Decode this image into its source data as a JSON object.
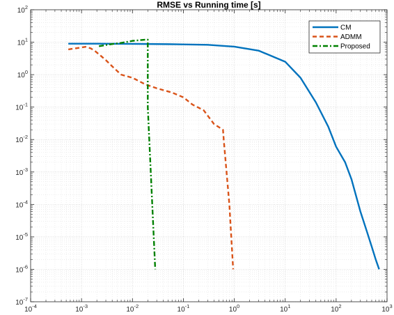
{
  "chart_data": {
    "type": "line",
    "title": "RMSE vs Running time [s]",
    "xlabel": "",
    "ylabel": "",
    "xscale": "log",
    "yscale": "log",
    "xlim": [
      0.0001,
      1000
    ],
    "ylim": [
      1e-07,
      100
    ],
    "x_tick_labels": [
      {
        "base": "10",
        "exp": "-4"
      },
      {
        "base": "10",
        "exp": "-3"
      },
      {
        "base": "10",
        "exp": "-2"
      },
      {
        "base": "10",
        "exp": "-1"
      },
      {
        "base": "10",
        "exp": "0"
      },
      {
        "base": "10",
        "exp": "1"
      },
      {
        "base": "10",
        "exp": "2"
      },
      {
        "base": "10",
        "exp": "3"
      }
    ],
    "y_tick_labels": [
      {
        "base": "10",
        "exp": "-7"
      },
      {
        "base": "10",
        "exp": "-6"
      },
      {
        "base": "10",
        "exp": "-5"
      },
      {
        "base": "10",
        "exp": "-4"
      },
      {
        "base": "10",
        "exp": "-3"
      },
      {
        "base": "10",
        "exp": "-2"
      },
      {
        "base": "10",
        "exp": "-1"
      },
      {
        "base": "10",
        "exp": "0"
      },
      {
        "base": "10",
        "exp": "1"
      },
      {
        "base": "10",
        "exp": "2"
      }
    ],
    "grid": true,
    "minor_grid": true,
    "legend_position": "top-right",
    "series": [
      {
        "name": "CM",
        "color": "#0072BD",
        "style": "solid",
        "x": [
          0.00055,
          0.002,
          0.01,
          0.05,
          0.3,
          1,
          3,
          10,
          20,
          40,
          70,
          100,
          150,
          200,
          300,
          400,
          500,
          600,
          700
        ],
        "y": [
          9,
          9,
          8.9,
          8.7,
          8.3,
          7.3,
          5.5,
          2.5,
          0.8,
          0.14,
          0.025,
          0.006,
          0.002,
          0.0006,
          6e-05,
          1.5e-05,
          5e-06,
          2e-06,
          1e-06
        ]
      },
      {
        "name": "ADMM",
        "color": "#D95319",
        "style": "dashed",
        "x": [
          0.00055,
          0.0012,
          0.0015,
          0.0018,
          0.0023,
          0.003,
          0.004,
          0.006,
          0.01,
          0.018,
          0.03,
          0.06,
          0.1,
          0.15,
          0.25,
          0.4,
          0.6,
          0.62,
          0.8,
          0.95
        ],
        "y": [
          6,
          7.2,
          6.5,
          5.5,
          4,
          2.8,
          1.8,
          1,
          0.8,
          0.5,
          0.38,
          0.28,
          0.2,
          0.12,
          0.08,
          0.03,
          0.02,
          0.01,
          0.0001,
          1e-06
        ]
      },
      {
        "name": "Proposed",
        "color": "#008000",
        "style": "dashdot",
        "x": [
          0.0022,
          0.004,
          0.006,
          0.01,
          0.018,
          0.02,
          0.02,
          0.028
        ],
        "y": [
          7.5,
          8.8,
          9.5,
          11,
          12,
          12,
          0.1,
          1e-06
        ]
      }
    ]
  }
}
